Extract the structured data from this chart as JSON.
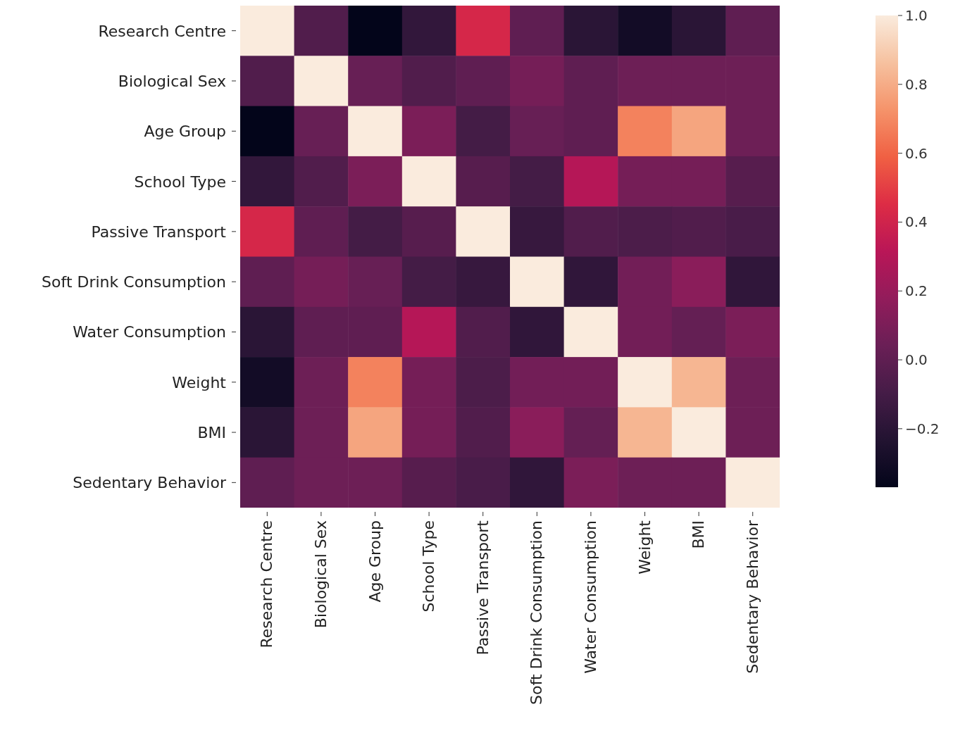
{
  "chart_data": {
    "type": "heatmap",
    "categories": [
      "Research Centre",
      "Biological Sex",
      "Age Group",
      "School Type",
      "Passive Transport",
      "Soft Drink Consumption",
      "Water Consumption",
      "Weight",
      "BMI",
      "Sedentary Behavior"
    ],
    "y_categories": [
      "Research Centre",
      "Biological Sex",
      "Age Group",
      "School Type",
      "Passive Transport",
      "Soft Drink Consumption",
      "Water Consumption",
      "Weight",
      "BMI",
      "Sedentary Behavior"
    ],
    "cells": [
      [
        1,
        -0.05,
        -0.37,
        -0.17,
        0.42,
        0.0,
        -0.2,
        -0.3,
        -0.2,
        0.0
      ],
      [
        -0.05,
        1,
        0.03,
        -0.05,
        0.0,
        0.08,
        0.0,
        0.05,
        0.05,
        0.05
      ],
      [
        -0.37,
        0.03,
        1,
        0.1,
        -0.1,
        0.03,
        0.0,
        0.68,
        0.78,
        0.05
      ],
      [
        -0.17,
        -0.05,
        0.1,
        1,
        -0.03,
        -0.1,
        0.3,
        0.08,
        0.08,
        -0.03
      ],
      [
        0.42,
        0.0,
        -0.1,
        -0.03,
        1,
        -0.15,
        -0.05,
        -0.07,
        -0.05,
        -0.08
      ],
      [
        0.0,
        0.08,
        0.03,
        -0.1,
        -0.15,
        1,
        -0.18,
        0.07,
        0.15,
        -0.18
      ],
      [
        -0.2,
        0.0,
        0.0,
        0.3,
        -0.05,
        -0.18,
        1,
        0.07,
        0.02,
        0.1
      ],
      [
        -0.3,
        0.05,
        0.68,
        0.08,
        -0.07,
        0.07,
        0.07,
        1,
        0.83,
        0.05
      ],
      [
        -0.2,
        0.05,
        0.78,
        0.08,
        -0.05,
        0.15,
        0.02,
        0.83,
        1,
        0.05
      ],
      [
        0.0,
        0.05,
        0.05,
        -0.03,
        -0.08,
        -0.18,
        0.1,
        0.05,
        0.05,
        1
      ]
    ],
    "clim": [
      -0.37,
      1.0
    ],
    "cticks": [
      {
        "value": -0.2,
        "label": "−0.2"
      },
      {
        "value": 0,
        "label": "0.0"
      },
      {
        "value": 0.2,
        "label": "0.2"
      },
      {
        "value": 0.4,
        "label": "0.4"
      },
      {
        "value": 0.6,
        "label": "0.6"
      },
      {
        "value": 0.8,
        "label": "0.8"
      },
      {
        "value": 1,
        "label": "1.0"
      }
    ]
  }
}
